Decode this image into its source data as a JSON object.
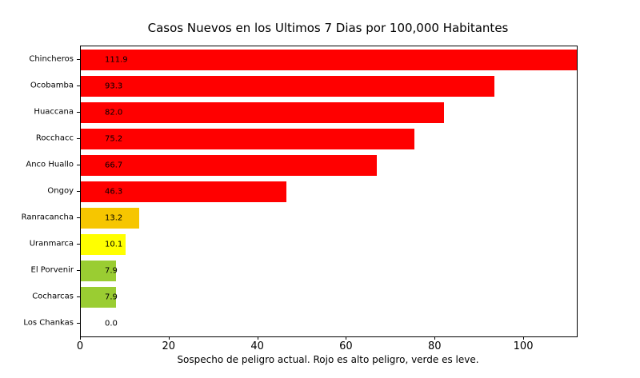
{
  "chart_data": {
    "type": "bar",
    "orientation": "horizontal",
    "title": "Casos Nuevos en los Ultimos 7 Dias por 100,000 Habitantes",
    "xlabel": "Sospecho de peligro actual. Rojo es alto peligro, verde es leve.",
    "ylabel": "",
    "xlim": [
      0,
      111.9
    ],
    "xticks": [
      0,
      20,
      40,
      60,
      80,
      100
    ],
    "grid": false,
    "legend": "none",
    "categories": [
      "Chincheros",
      "Ocobamba",
      "Huaccana",
      "Rocchacc",
      "Anco Huallo",
      "Ongoy",
      "Ranracancha",
      "Uranmarca",
      "El Porvenir",
      "Cocharcas",
      "Los Chankas"
    ],
    "values": [
      111.9,
      93.3,
      82.0,
      75.2,
      66.7,
      46.3,
      13.2,
      10.1,
      7.9,
      7.9,
      0.0
    ],
    "value_labels": [
      "111.9",
      "93.3",
      "82.0",
      "75.2",
      "66.7",
      "46.3",
      "13.2",
      "10.1",
      "7.9",
      "7.9",
      "0.0"
    ],
    "bar_colors": [
      "#ff0000",
      "#ff0000",
      "#ff0000",
      "#ff0000",
      "#ff0000",
      "#ff0000",
      "#f6c600",
      "#ffff00",
      "#9acd32",
      "#9acd32",
      "#ffffff"
    ]
  },
  "colors": {
    "high_danger": "#ff0000",
    "medium_high": "#f6c600",
    "medium": "#ffff00",
    "low": "#9acd32",
    "axis": "#000000",
    "background": "#ffffff"
  }
}
